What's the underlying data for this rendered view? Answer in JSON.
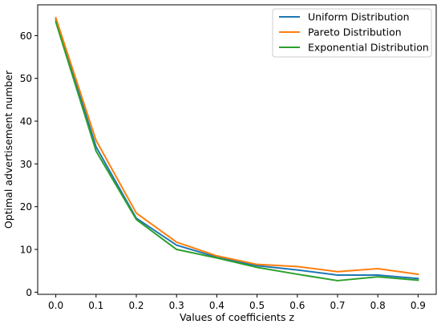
{
  "chart_data": {
    "type": "line",
    "xlabel": "Values of coefficients z",
    "ylabel": "Optimal advertisement number",
    "x": [
      0.0,
      0.1,
      0.2,
      0.3,
      0.4,
      0.5,
      0.6,
      0.7,
      0.8,
      0.9
    ],
    "x_ticks": [
      "0.0",
      "0.1",
      "0.2",
      "0.3",
      "0.4",
      "0.5",
      "0.6",
      "0.7",
      "0.8",
      "0.9"
    ],
    "y_ticks": [
      0,
      10,
      20,
      30,
      40,
      50,
      60
    ],
    "xlim": [
      -0.045,
      0.945
    ],
    "ylim": [
      -0.5,
      67.2
    ],
    "grid": false,
    "legend_position": "top-right",
    "series": [
      {
        "name": "Uniform Distribution",
        "color": "#1f77b4",
        "values": [
          63.8,
          34.0,
          17.3,
          11.0,
          8.2,
          6.2,
          5.2,
          4.0,
          4.0,
          3.2
        ]
      },
      {
        "name": "Pareto Distribution",
        "color": "#ff7f0e",
        "values": [
          64.2,
          35.5,
          18.5,
          11.7,
          8.5,
          6.5,
          6.0,
          4.8,
          5.5,
          4.2
        ]
      },
      {
        "name": "Exponential Distribution",
        "color": "#2ca02c",
        "values": [
          63.2,
          33.0,
          17.0,
          10.0,
          8.0,
          5.8,
          4.2,
          2.7,
          3.6,
          2.8
        ]
      }
    ]
  }
}
